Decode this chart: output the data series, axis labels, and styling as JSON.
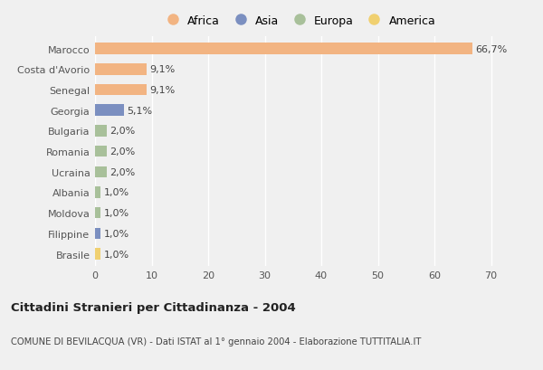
{
  "categories": [
    "Marocco",
    "Costa d'Avorio",
    "Senegal",
    "Georgia",
    "Bulgaria",
    "Romania",
    "Ucraina",
    "Albania",
    "Moldova",
    "Filippine",
    "Brasile"
  ],
  "values": [
    66.7,
    9.1,
    9.1,
    5.1,
    2.0,
    2.0,
    2.0,
    1.0,
    1.0,
    1.0,
    1.0
  ],
  "labels": [
    "66,7%",
    "9,1%",
    "9,1%",
    "5,1%",
    "2,0%",
    "2,0%",
    "2,0%",
    "1,0%",
    "1,0%",
    "1,0%",
    "1,0%"
  ],
  "continent_colors": [
    "#F2B482",
    "#F2B482",
    "#F2B482",
    "#7B8FC0",
    "#A8C09A",
    "#A8C09A",
    "#A8C09A",
    "#A8C09A",
    "#A8C09A",
    "#7B8FC0",
    "#F0D070"
  ],
  "legend_labels": [
    "Africa",
    "Asia",
    "Europa",
    "America"
  ],
  "legend_colors": [
    "#F2B482",
    "#7B8FC0",
    "#A8C09A",
    "#F0D070"
  ],
  "xlim": [
    0,
    72
  ],
  "xticks": [
    0,
    10,
    20,
    30,
    40,
    50,
    60,
    70
  ],
  "title": "Cittadini Stranieri per Cittadinanza - 2004",
  "subtitle": "COMUNE DI BEVILACQUA (VR) - Dati ISTAT al 1° gennaio 2004 - Elaborazione TUTTITALIA.IT",
  "background_color": "#f0f0f0",
  "grid_color": "#ffffff",
  "bar_height": 0.55,
  "label_fontsize": 8,
  "ytick_fontsize": 8,
  "xtick_fontsize": 8
}
